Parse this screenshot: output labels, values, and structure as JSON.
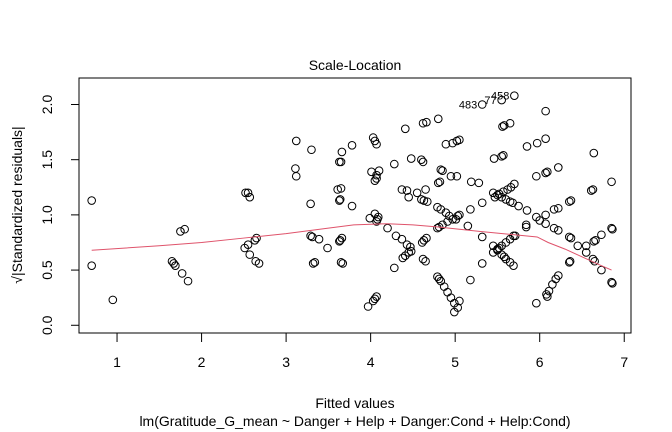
{
  "chart_data": {
    "type": "scatter",
    "title": "Scale-Location",
    "xlabel": "Fitted values",
    "ylabel": "√|Standardized residuals|",
    "subtitle": "lm(Gratitude_G_mean ~ Danger + Help + Danger:Cond + Help:Cond)",
    "xlim": [
      0.55,
      7.08
    ],
    "ylim": [
      -0.07,
      2.24
    ],
    "xticks": [
      1,
      2,
      3,
      4,
      5,
      6,
      7
    ],
    "xtick_labels": [
      "1",
      "2",
      "3",
      "4",
      "5",
      "6",
      "7"
    ],
    "yticks": [
      0.0,
      0.5,
      1.0,
      1.5,
      2.0
    ],
    "ytick_labels": [
      "0.0",
      "0.5",
      "1.0",
      "1.5",
      "2.0"
    ],
    "grid": false,
    "colors": {
      "points": "#000000",
      "smoother": "#DF536B"
    },
    "labeled_points": [
      {
        "label": "483",
        "x": 5.32,
        "y": 2.0
      },
      {
        "label": "77",
        "x": 5.55,
        "y": 2.04
      },
      {
        "label": "458",
        "x": 5.7,
        "y": 2.08
      }
    ],
    "points": [
      [
        0.7,
        1.13
      ],
      [
        0.7,
        0.54
      ],
      [
        0.95,
        0.23
      ],
      [
        1.75,
        0.85
      ],
      [
        1.8,
        0.87
      ],
      [
        1.65,
        0.58
      ],
      [
        1.67,
        0.56
      ],
      [
        1.69,
        0.54
      ],
      [
        1.77,
        0.47
      ],
      [
        1.84,
        0.4
      ],
      [
        2.52,
        1.2
      ],
      [
        2.55,
        1.2
      ],
      [
        2.57,
        1.16
      ],
      [
        2.51,
        0.7
      ],
      [
        2.55,
        0.73
      ],
      [
        2.57,
        0.64
      ],
      [
        2.64,
        0.58
      ],
      [
        2.68,
        0.56
      ],
      [
        2.65,
        0.79
      ],
      [
        2.63,
        0.77
      ],
      [
        3.12,
        1.67
      ],
      [
        3.11,
        1.42
      ],
      [
        3.12,
        1.35
      ],
      [
        3.3,
        1.59
      ],
      [
        3.29,
        1.1
      ],
      [
        3.29,
        0.81
      ],
      [
        3.31,
        0.8
      ],
      [
        3.39,
        0.78
      ],
      [
        3.49,
        0.7
      ],
      [
        3.32,
        0.56
      ],
      [
        3.34,
        0.57
      ],
      [
        3.63,
        1.48
      ],
      [
        3.65,
        1.48
      ],
      [
        3.66,
        1.57
      ],
      [
        3.78,
        1.63
      ],
      [
        3.61,
        1.23
      ],
      [
        3.65,
        1.24
      ],
      [
        3.63,
        1.13
      ],
      [
        3.64,
        1.14
      ],
      [
        3.78,
        1.08
      ],
      [
        3.63,
        0.76
      ],
      [
        3.66,
        0.79
      ],
      [
        3.64,
        0.77
      ],
      [
        3.65,
        0.57
      ],
      [
        3.67,
        0.56
      ],
      [
        4.03,
        1.7
      ],
      [
        4.07,
        1.64
      ],
      [
        4.05,
        1.67
      ],
      [
        4.01,
        1.39
      ],
      [
        4.07,
        1.36
      ],
      [
        4.1,
        1.4
      ],
      [
        4.07,
        1.33
      ],
      [
        4.05,
        1.31
      ],
      [
        3.99,
        0.97
      ],
      [
        4.05,
        1.01
      ],
      [
        4.09,
        0.98
      ],
      [
        4.07,
        0.94
      ],
      [
        4.08,
        0.96
      ],
      [
        4.03,
        0.22
      ],
      [
        4.07,
        0.26
      ],
      [
        3.97,
        0.17
      ],
      [
        4.05,
        0.24
      ],
      [
        4.41,
        1.78
      ],
      [
        4.62,
        1.83
      ],
      [
        4.66,
        1.84
      ],
      [
        4.8,
        1.87
      ],
      [
        4.89,
        1.64
      ],
      [
        4.97,
        1.65
      ],
      [
        5.05,
        1.68
      ],
      [
        5.02,
        1.67
      ],
      [
        4.28,
        1.46
      ],
      [
        4.48,
        1.51
      ],
      [
        4.62,
        1.48
      ],
      [
        4.6,
        1.5
      ],
      [
        4.37,
        1.23
      ],
      [
        4.43,
        1.22
      ],
      [
        4.45,
        1.16
      ],
      [
        4.55,
        1.2
      ],
      [
        4.65,
        1.23
      ],
      [
        4.63,
        1.13
      ],
      [
        4.6,
        1.14
      ],
      [
        4.67,
        1.12
      ],
      [
        4.2,
        0.88
      ],
      [
        4.3,
        0.81
      ],
      [
        4.37,
        0.78
      ],
      [
        4.43,
        0.73
      ],
      [
        4.47,
        0.71
      ],
      [
        4.48,
        0.67
      ],
      [
        4.38,
        0.61
      ],
      [
        4.41,
        0.63
      ],
      [
        4.45,
        0.66
      ],
      [
        4.28,
        0.52
      ],
      [
        4.62,
        0.6
      ],
      [
        4.65,
        0.58
      ],
      [
        4.61,
        0.75
      ],
      [
        4.66,
        0.79
      ],
      [
        4.63,
        0.77
      ],
      [
        4.83,
        1.41
      ],
      [
        4.85,
        1.4
      ],
      [
        4.95,
        1.35
      ],
      [
        5.02,
        1.35
      ],
      [
        4.8,
        1.29
      ],
      [
        4.82,
        1.3
      ],
      [
        5.19,
        1.3
      ],
      [
        5.28,
        1.29
      ],
      [
        4.79,
        0.88
      ],
      [
        4.85,
        0.91
      ],
      [
        4.91,
        0.94
      ],
      [
        4.97,
        0.96
      ],
      [
        5.03,
        0.99
      ],
      [
        4.81,
        0.89
      ],
      [
        4.79,
        1.07
      ],
      [
        4.83,
        1.05
      ],
      [
        4.89,
        1.02
      ],
      [
        4.93,
        0.99
      ],
      [
        5.01,
        0.96
      ],
      [
        5.05,
        1.0
      ],
      [
        4.79,
        0.44
      ],
      [
        4.83,
        0.4
      ],
      [
        4.87,
        0.35
      ],
      [
        4.91,
        0.3
      ],
      [
        4.95,
        0.25
      ],
      [
        4.99,
        0.2
      ],
      [
        5.05,
        0.22
      ],
      [
        5.03,
        0.16
      ],
      [
        4.99,
        0.12
      ],
      [
        4.81,
        0.42
      ],
      [
        5.15,
        0.9
      ],
      [
        5.18,
        1.05
      ],
      [
        5.32,
        1.11
      ],
      [
        5.32,
        0.8
      ],
      [
        5.32,
        0.56
      ],
      [
        5.18,
        0.41
      ],
      [
        6.07,
        1.94
      ],
      [
        5.56,
        1.8
      ],
      [
        5.58,
        1.81
      ],
      [
        5.65,
        1.83
      ],
      [
        5.85,
        1.62
      ],
      [
        5.97,
        1.65
      ],
      [
        6.07,
        1.69
      ],
      [
        6.64,
        1.56
      ],
      [
        5.46,
        1.51
      ],
      [
        5.57,
        1.54
      ],
      [
        5.55,
        1.53
      ],
      [
        6.22,
        1.43
      ],
      [
        6.07,
        1.38
      ],
      [
        6.09,
        1.39
      ],
      [
        5.96,
        1.35
      ],
      [
        6.85,
        1.3
      ],
      [
        6.61,
        1.22
      ],
      [
        6.63,
        1.23
      ],
      [
        5.45,
        1.2
      ],
      [
        5.5,
        1.18
      ],
      [
        5.55,
        1.16
      ],
      [
        5.6,
        1.14
      ],
      [
        5.65,
        1.12
      ],
      [
        5.68,
        1.11
      ],
      [
        5.47,
        1.16
      ],
      [
        5.52,
        1.19
      ],
      [
        5.57,
        1.21
      ],
      [
        5.62,
        1.23
      ],
      [
        5.66,
        1.25
      ],
      [
        5.7,
        1.28
      ],
      [
        5.75,
        1.08
      ],
      [
        5.85,
        1.04
      ],
      [
        5.96,
        0.98
      ],
      [
        6.07,
        1.0
      ],
      [
        6.17,
        1.05
      ],
      [
        6.22,
        1.06
      ],
      [
        6.35,
        1.12
      ],
      [
        6.37,
        1.13
      ],
      [
        5.45,
        0.66
      ],
      [
        5.5,
        0.69
      ],
      [
        5.55,
        0.72
      ],
      [
        5.6,
        0.75
      ],
      [
        5.65,
        0.78
      ],
      [
        5.69,
        0.81
      ],
      [
        5.45,
        0.72
      ],
      [
        5.5,
        0.68
      ],
      [
        5.55,
        0.64
      ],
      [
        5.6,
        0.6
      ],
      [
        5.65,
        0.57
      ],
      [
        5.69,
        0.54
      ],
      [
        5.52,
        0.7
      ],
      [
        5.58,
        0.62
      ],
      [
        5.71,
        0.81
      ],
      [
        5.84,
        0.89
      ],
      [
        5.84,
        0.91
      ],
      [
        6.0,
        0.95
      ],
      [
        6.07,
        0.92
      ],
      [
        6.17,
        0.88
      ],
      [
        6.22,
        0.86
      ],
      [
        6.35,
        0.8
      ],
      [
        6.37,
        0.79
      ],
      [
        6.45,
        0.72
      ],
      [
        6.55,
        0.72
      ],
      [
        6.64,
        0.76
      ],
      [
        6.66,
        0.77
      ],
      [
        6.73,
        0.82
      ],
      [
        6.85,
        0.88
      ],
      [
        6.86,
        0.87
      ],
      [
        5.96,
        0.2
      ],
      [
        6.08,
        0.28
      ],
      [
        6.09,
        0.26
      ],
      [
        6.11,
        0.31
      ],
      [
        6.15,
        0.37
      ],
      [
        6.19,
        0.42
      ],
      [
        6.22,
        0.45
      ],
      [
        6.35,
        0.57
      ],
      [
        6.36,
        0.58
      ],
      [
        6.55,
        0.66
      ],
      [
        6.63,
        0.6
      ],
      [
        6.65,
        0.58
      ],
      [
        6.73,
        0.5
      ],
      [
        6.85,
        0.39
      ],
      [
        6.86,
        0.38
      ]
    ],
    "smoother": [
      [
        0.7,
        0.68
      ],
      [
        1.5,
        0.72
      ],
      [
        2.0,
        0.75
      ],
      [
        2.5,
        0.79
      ],
      [
        3.0,
        0.83
      ],
      [
        3.5,
        0.88
      ],
      [
        3.8,
        0.91
      ],
      [
        4.2,
        0.92
      ],
      [
        4.5,
        0.91
      ],
      [
        4.8,
        0.89
      ],
      [
        5.3,
        0.85
      ],
      [
        5.7,
        0.82
      ],
      [
        5.97,
        0.8
      ],
      [
        6.1,
        0.75
      ],
      [
        6.3,
        0.69
      ],
      [
        6.5,
        0.62
      ],
      [
        6.7,
        0.55
      ],
      [
        6.85,
        0.5
      ]
    ]
  }
}
